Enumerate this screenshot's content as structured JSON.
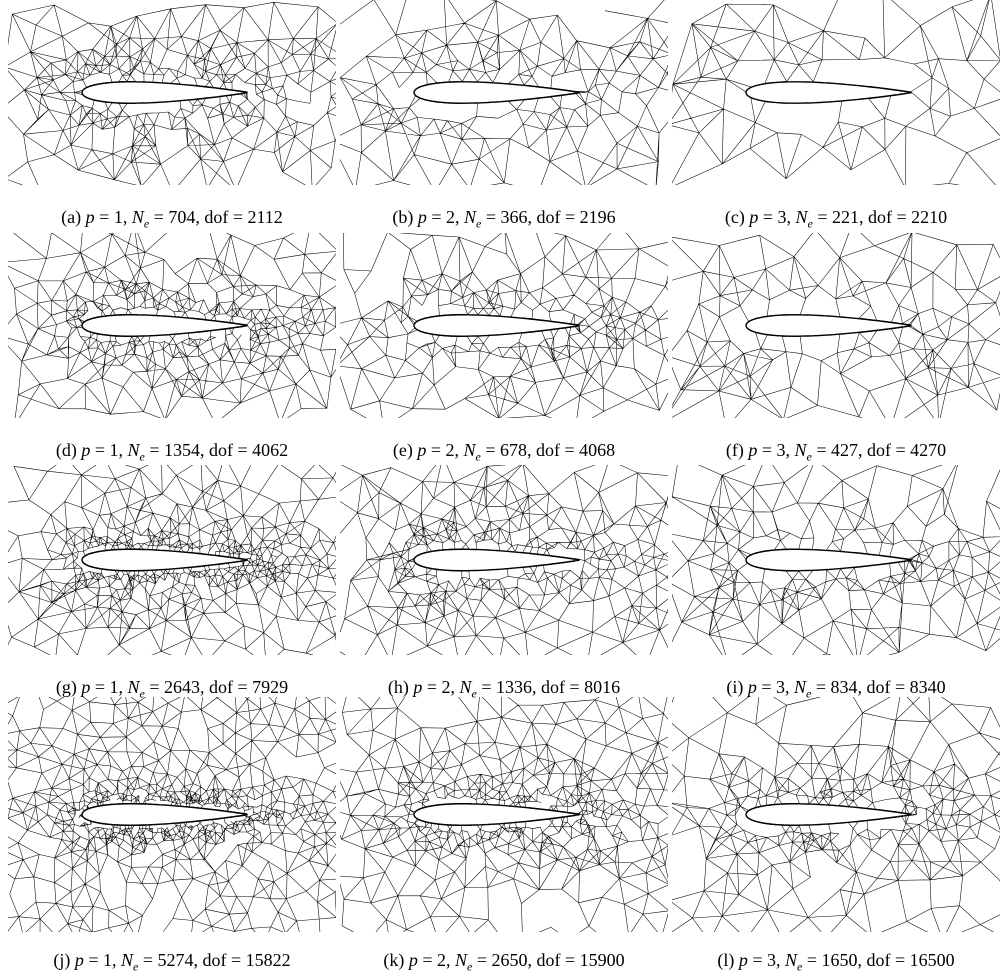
{
  "notation": {
    "p": "p",
    "n": "N",
    "n_sub": "e",
    "dof": "dof",
    "equals": "=",
    "comma": ","
  },
  "panels": [
    {
      "tag": "(a)",
      "p": 1,
      "n_e": 704,
      "dof": 2112
    },
    {
      "tag": "(b)",
      "p": 2,
      "n_e": 366,
      "dof": 2196
    },
    {
      "tag": "(c)",
      "p": 3,
      "n_e": 221,
      "dof": 2210
    },
    {
      "tag": "(d)",
      "p": 1,
      "n_e": 1354,
      "dof": 4062
    },
    {
      "tag": "(e)",
      "p": 2,
      "n_e": 678,
      "dof": 4068
    },
    {
      "tag": "(f)",
      "p": 3,
      "n_e": 427,
      "dof": 4270
    },
    {
      "tag": "(g)",
      "p": 1,
      "n_e": 2643,
      "dof": 7929
    },
    {
      "tag": "(h)",
      "p": 2,
      "n_e": 1336,
      "dof": 8016
    },
    {
      "tag": "(i)",
      "p": 3,
      "n_e": 834,
      "dof": 8340
    },
    {
      "tag": "(j)",
      "p": 1,
      "n_e": 5274,
      "dof": 15822
    },
    {
      "tag": "(k)",
      "p": 2,
      "n_e": 2650,
      "dof": 15900
    },
    {
      "tag": "(l)",
      "p": 3,
      "n_e": 1650,
      "dof": 16500
    }
  ]
}
